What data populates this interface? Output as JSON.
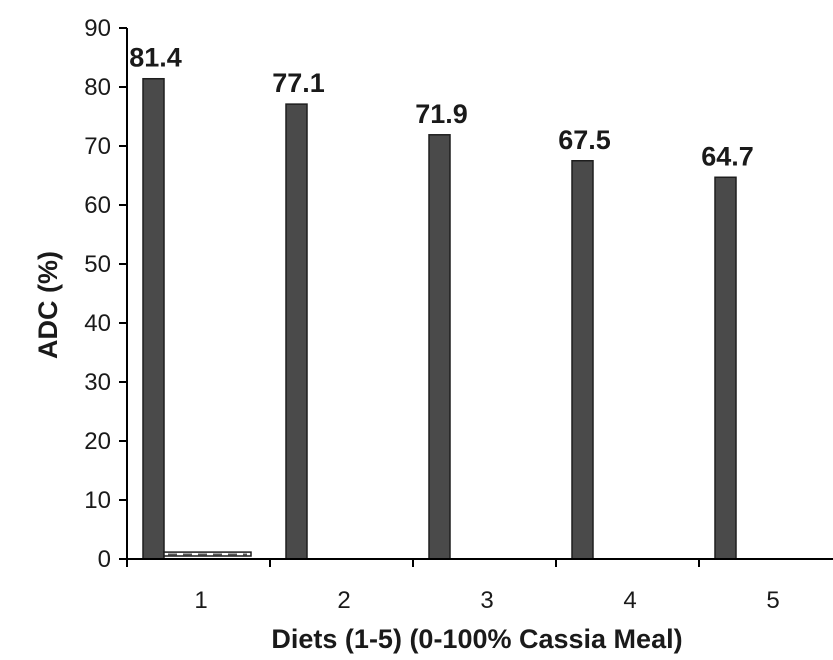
{
  "chart_data": {
    "type": "bar",
    "title": "",
    "xlabel": "Diets (1-5) (0-100% Cassia Meal)",
    "ylabel": "ADC (%)",
    "ylim": [
      0,
      90
    ],
    "yticks": [
      0,
      10,
      20,
      30,
      40,
      50,
      60,
      70,
      80,
      90
    ],
    "grid": false,
    "legend": "none",
    "categories": [
      "1",
      "2",
      "3",
      "4",
      "5"
    ],
    "series": [
      {
        "values": [
          81.4,
          77.1,
          71.9,
          67.5,
          64.7
        ],
        "color": "#4a4a4a"
      },
      {
        "values": [
          1,
          0,
          0,
          0,
          0
        ],
        "color": "#ffffff",
        "pattern": "dashed"
      }
    ],
    "data_labels": [
      "81.4",
      "77.1",
      "71.9",
      "67.5",
      "64.7"
    ]
  }
}
